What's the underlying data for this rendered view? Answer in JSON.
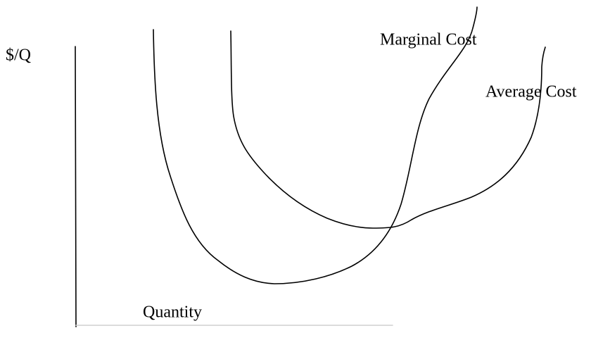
{
  "axes": {
    "y_label": "$/Q",
    "x_label": "Quantity"
  },
  "curves": [
    {
      "label": "Marginal Cost"
    },
    {
      "label": "Average Cost"
    }
  ]
}
